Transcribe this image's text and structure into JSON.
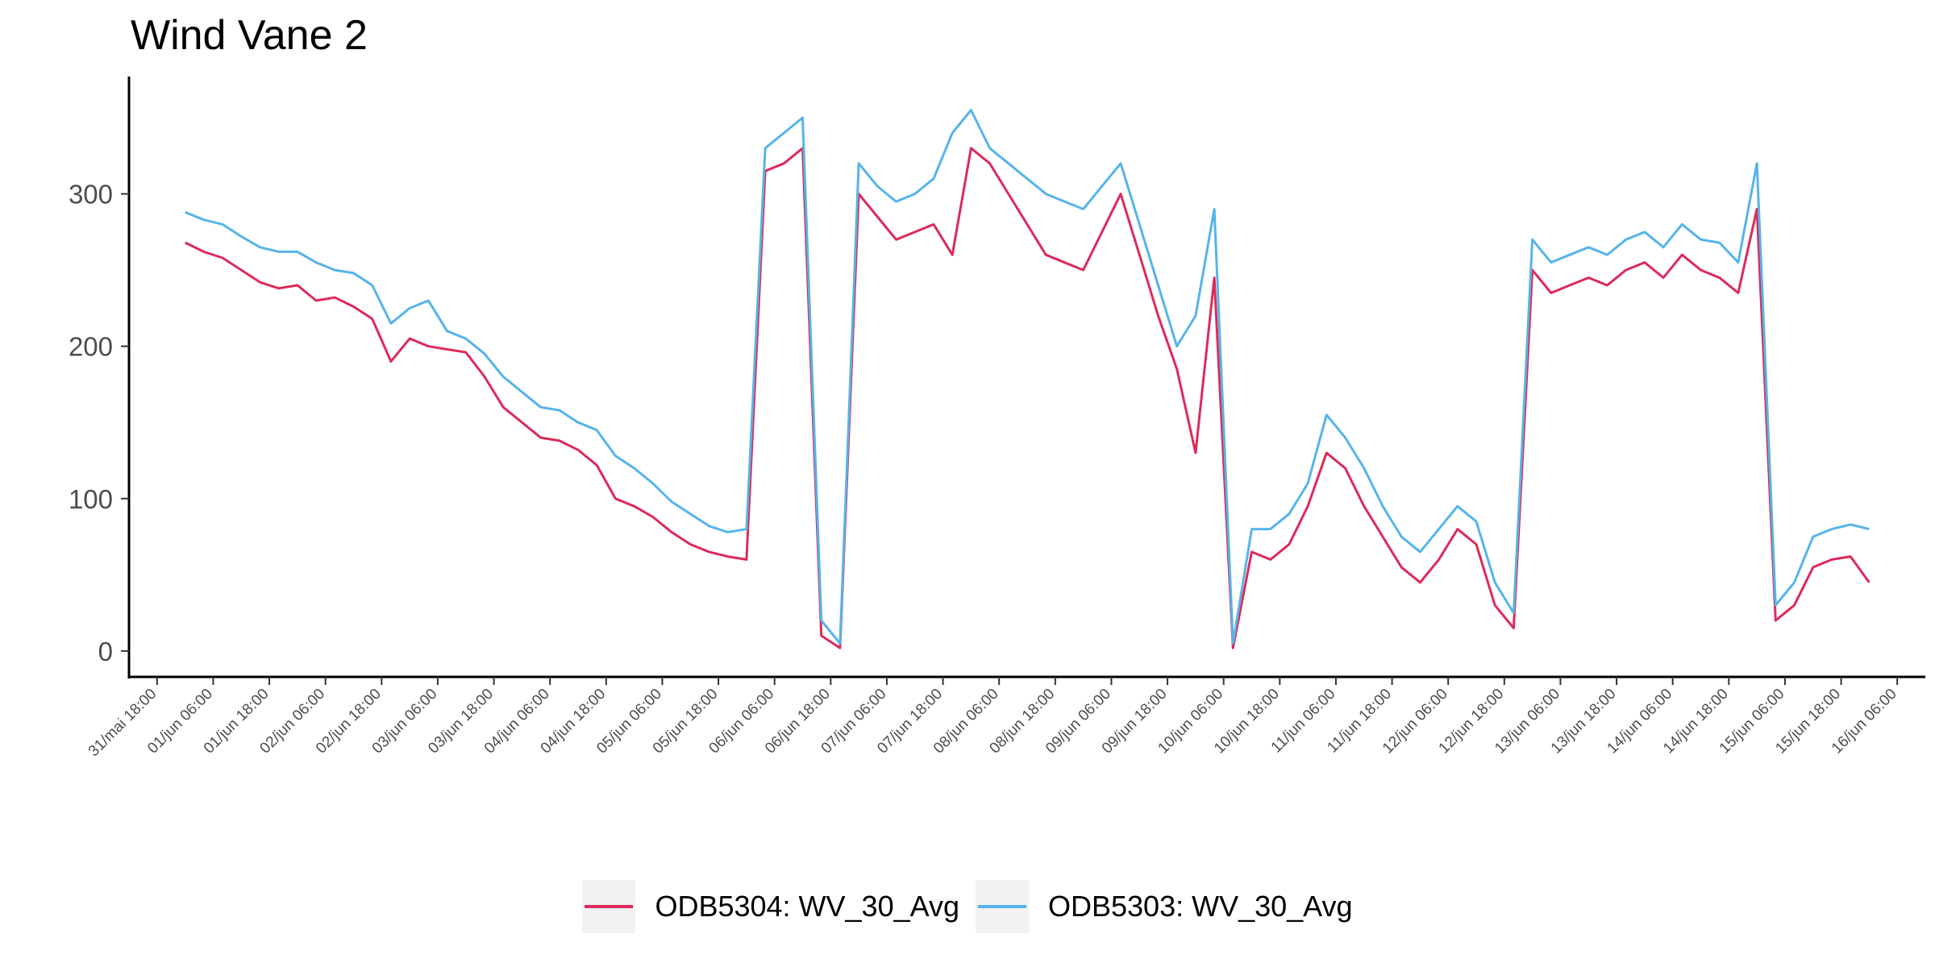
{
  "chart_data": {
    "type": "line",
    "title": "Wind Vane 2",
    "xlabel": "",
    "ylabel": "",
    "ylim": [
      -17,
      377
    ],
    "y_ticks": [
      0,
      100,
      200,
      300
    ],
    "x_axis_hours_per_tick": 12,
    "x_ticks": [
      "31/mai 18:00",
      "01/jun 06:00",
      "01/jun 18:00",
      "02/jun 06:00",
      "02/jun 18:00",
      "03/jun 06:00",
      "03/jun 18:00",
      "04/jun 06:00",
      "04/jun 18:00",
      "05/jun 06:00",
      "05/jun 18:00",
      "06/jun 06:00",
      "06/jun 18:00",
      "07/jun 06:00",
      "07/jun 18:00",
      "08/jun 06:00",
      "08/jun 18:00",
      "09/jun 06:00",
      "09/jun 18:00",
      "10/jun 06:00",
      "10/jun 18:00",
      "11/jun 06:00",
      "11/jun 18:00",
      "12/jun 06:00",
      "12/jun 18:00",
      "13/jun 06:00",
      "13/jun 18:00",
      "14/jun 06:00",
      "14/jun 18:00",
      "15/jun 06:00",
      "15/jun 18:00",
      "16/jun 06:00"
    ],
    "xlim": [
      "31/mai 12:00",
      "16/jun 12:00"
    ],
    "grid": false,
    "legend_position": "bottom",
    "series": [
      {
        "name": "ODB5304: WV_30_Avg",
        "color": "#dc2a5a",
        "x": [
          "01/jun 00:00",
          "01/jun 04:00",
          "01/jun 08:00",
          "01/jun 12:00",
          "01/jun 16:00",
          "01/jun 20:00",
          "02/jun 00:00",
          "02/jun 04:00",
          "02/jun 08:00",
          "02/jun 12:00",
          "02/jun 16:00",
          "02/jun 20:00",
          "03/jun 00:00",
          "03/jun 04:00",
          "03/jun 08:00",
          "03/jun 12:00",
          "03/jun 16:00",
          "03/jun 20:00",
          "04/jun 00:00",
          "04/jun 04:00",
          "04/jun 08:00",
          "04/jun 12:00",
          "04/jun 16:00",
          "04/jun 20:00",
          "05/jun 00:00",
          "05/jun 04:00",
          "05/jun 08:00",
          "05/jun 12:00",
          "05/jun 16:00",
          "05/jun 20:00",
          "06/jun 00:00",
          "06/jun 04:00",
          "06/jun 08:00",
          "06/jun 12:00",
          "06/jun 16:00",
          "06/jun 20:00",
          "07/jun 00:00",
          "07/jun 04:00",
          "07/jun 08:00",
          "07/jun 12:00",
          "07/jun 16:00",
          "07/jun 20:00",
          "08/jun 00:00",
          "08/jun 04:00",
          "08/jun 08:00",
          "08/jun 12:00",
          "08/jun 16:00",
          "08/jun 20:00",
          "09/jun 00:00",
          "09/jun 04:00",
          "09/jun 08:00",
          "09/jun 12:00",
          "09/jun 16:00",
          "09/jun 20:00",
          "10/jun 00:00",
          "10/jun 04:00",
          "10/jun 08:00",
          "10/jun 12:00",
          "10/jun 16:00",
          "10/jun 20:00",
          "11/jun 00:00",
          "11/jun 04:00",
          "11/jun 08:00",
          "11/jun 12:00",
          "11/jun 16:00",
          "11/jun 20:00",
          "12/jun 00:00",
          "12/jun 04:00",
          "12/jun 08:00",
          "12/jun 12:00",
          "12/jun 16:00",
          "12/jun 20:00",
          "13/jun 00:00",
          "13/jun 04:00",
          "13/jun 08:00",
          "13/jun 12:00",
          "13/jun 16:00",
          "13/jun 20:00",
          "14/jun 00:00",
          "14/jun 04:00",
          "14/jun 08:00",
          "14/jun 12:00",
          "14/jun 16:00",
          "14/jun 20:00",
          "15/jun 00:00",
          "15/jun 04:00",
          "15/jun 08:00",
          "15/jun 12:00",
          "15/jun 16:00",
          "15/jun 20:00",
          "16/jun 00:00"
        ],
        "y": [
          268,
          262,
          258,
          250,
          242,
          238,
          240,
          230,
          232,
          226,
          218,
          190,
          205,
          200,
          198,
          196,
          180,
          160,
          150,
          140,
          138,
          132,
          122,
          100,
          95,
          88,
          78,
          70,
          65,
          62,
          60,
          315,
          320,
          330,
          10,
          2,
          300,
          285,
          270,
          275,
          280,
          260,
          330,
          320,
          300,
          280,
          260,
          255,
          250,
          275,
          300,
          260,
          220,
          185,
          130,
          245,
          2,
          65,
          60,
          70,
          95,
          130,
          120,
          95,
          75,
          55,
          45,
          60,
          80,
          70,
          30,
          15,
          250,
          235,
          240,
          245,
          240,
          250,
          255,
          245,
          260,
          250,
          245,
          235,
          290,
          20,
          30,
          55,
          60,
          62,
          45
        ]
      },
      {
        "name": "ODB5303: WV_30_Avg",
        "color": "#56b4e9",
        "x": [
          "01/jun 00:00",
          "01/jun 04:00",
          "01/jun 08:00",
          "01/jun 12:00",
          "01/jun 16:00",
          "01/jun 20:00",
          "02/jun 00:00",
          "02/jun 04:00",
          "02/jun 08:00",
          "02/jun 12:00",
          "02/jun 16:00",
          "02/jun 20:00",
          "03/jun 00:00",
          "03/jun 04:00",
          "03/jun 08:00",
          "03/jun 12:00",
          "03/jun 16:00",
          "03/jun 20:00",
          "04/jun 00:00",
          "04/jun 04:00",
          "04/jun 08:00",
          "04/jun 12:00",
          "04/jun 16:00",
          "04/jun 20:00",
          "05/jun 00:00",
          "05/jun 04:00",
          "05/jun 08:00",
          "05/jun 12:00",
          "05/jun 16:00",
          "05/jun 20:00",
          "06/jun 00:00",
          "06/jun 04:00",
          "06/jun 08:00",
          "06/jun 12:00",
          "06/jun 16:00",
          "06/jun 20:00",
          "07/jun 00:00",
          "07/jun 04:00",
          "07/jun 08:00",
          "07/jun 12:00",
          "07/jun 16:00",
          "07/jun 20:00",
          "08/jun 00:00",
          "08/jun 04:00",
          "08/jun 08:00",
          "08/jun 12:00",
          "08/jun 16:00",
          "08/jun 20:00",
          "09/jun 00:00",
          "09/jun 04:00",
          "09/jun 08:00",
          "09/jun 12:00",
          "09/jun 16:00",
          "09/jun 20:00",
          "10/jun 00:00",
          "10/jun 04:00",
          "10/jun 08:00",
          "10/jun 12:00",
          "10/jun 16:00",
          "10/jun 20:00",
          "11/jun 00:00",
          "11/jun 04:00",
          "11/jun 08:00",
          "11/jun 12:00",
          "11/jun 16:00",
          "11/jun 20:00",
          "12/jun 00:00",
          "12/jun 04:00",
          "12/jun 08:00",
          "12/jun 12:00",
          "12/jun 16:00",
          "12/jun 20:00",
          "13/jun 00:00",
          "13/jun 04:00",
          "13/jun 08:00",
          "13/jun 12:00",
          "13/jun 16:00",
          "13/jun 20:00",
          "14/jun 00:00",
          "14/jun 04:00",
          "14/jun 08:00",
          "14/jun 12:00",
          "14/jun 16:00",
          "14/jun 20:00",
          "15/jun 00:00",
          "15/jun 04:00",
          "15/jun 08:00",
          "15/jun 12:00",
          "15/jun 16:00",
          "15/jun 20:00",
          "16/jun 00:00"
        ],
        "y": [
          288,
          283,
          280,
          272,
          265,
          262,
          262,
          255,
          250,
          248,
          240,
          215,
          225,
          230,
          210,
          205,
          195,
          180,
          170,
          160,
          158,
          150,
          145,
          128,
          120,
          110,
          98,
          90,
          82,
          78,
          80,
          330,
          340,
          350,
          20,
          5,
          320,
          305,
          295,
          300,
          310,
          340,
          355,
          330,
          320,
          310,
          300,
          295,
          290,
          305,
          320,
          280,
          240,
          200,
          220,
          290,
          5,
          80,
          80,
          90,
          110,
          155,
          140,
          120,
          95,
          75,
          65,
          80,
          95,
          85,
          45,
          25,
          270,
          255,
          260,
          265,
          260,
          270,
          275,
          265,
          280,
          270,
          268,
          255,
          320,
          30,
          45,
          75,
          80,
          83,
          80
        ]
      }
    ]
  },
  "legend": {
    "item1_label": "ODB5304: WV_30_Avg",
    "item2_label": "ODB5303: WV_30_Avg"
  }
}
